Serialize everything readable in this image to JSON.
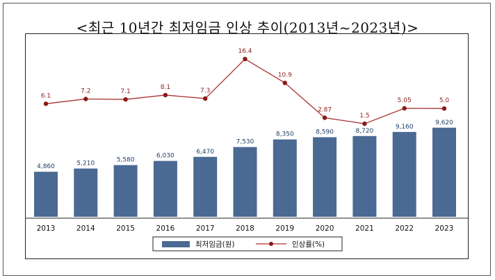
{
  "title": "<최근 10년간 최저임금 인상 추이(2013년~2023년)>",
  "colors": {
    "bar": "#4a6a93",
    "line": "#a83232",
    "marker": "#8b1a1a"
  },
  "chart_data": {
    "type": "bar+line",
    "categories": [
      "2013",
      "2014",
      "2015",
      "2016",
      "2017",
      "2018",
      "2019",
      "2020",
      "2021",
      "2022",
      "2023"
    ],
    "series": [
      {
        "name": "최저임금(원)",
        "type": "bar",
        "values": [
          4860,
          5210,
          5580,
          6030,
          6470,
          7530,
          8350,
          8590,
          8720,
          9160,
          9620
        ],
        "labels": [
          "4,860",
          "5,210",
          "5,580",
          "6,030",
          "6,470",
          "7,530",
          "8,350",
          "8,590",
          "8,720",
          "9,160",
          "9,620"
        ]
      },
      {
        "name": "인상률(%)",
        "type": "line",
        "values": [
          6.1,
          7.2,
          7.1,
          8.1,
          7.3,
          16.4,
          10.9,
          2.87,
          1.5,
          5.05,
          5.0
        ],
        "labels": [
          "6.1",
          "7.2",
          "7.1",
          "8.1",
          "7.3",
          "16.4",
          "10.9",
          "2.87",
          "1.5",
          "5.05",
          "5.0"
        ]
      }
    ],
    "legend_position": "bottom"
  }
}
